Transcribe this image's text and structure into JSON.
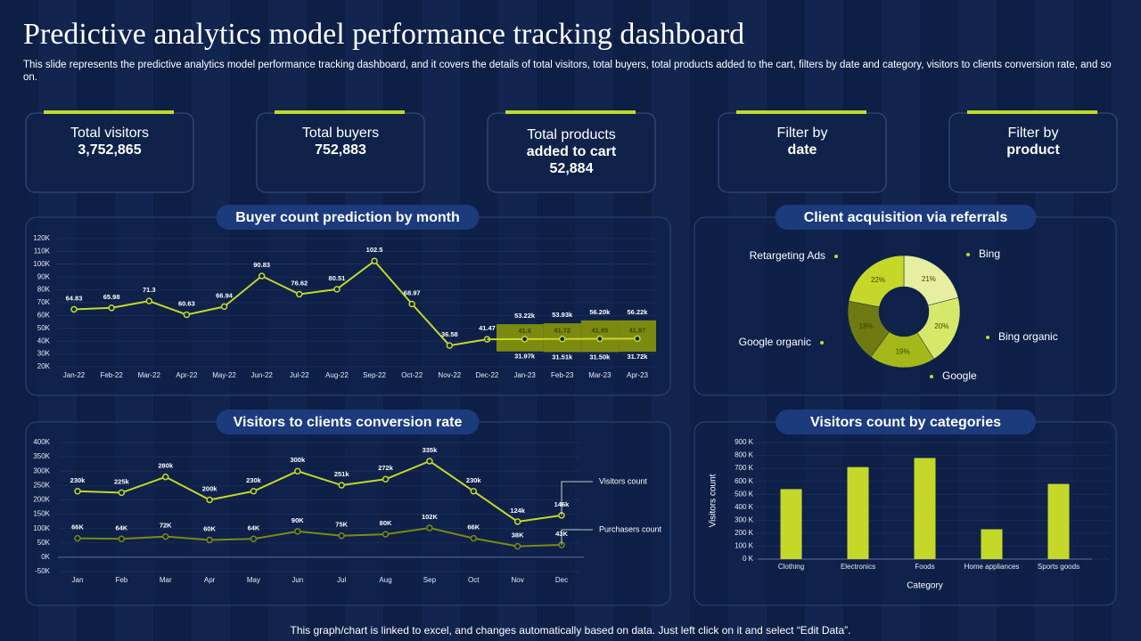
{
  "header": {
    "title": "Predictive analytics model performance tracking dashboard",
    "subtitle": "This slide represents the predictive analytics model performance tracking dashboard, and it covers the details of total visitors, total buyers, total products added to the cart, filters by date and category, visitors to clients conversion rate, and so on."
  },
  "kpis": [
    {
      "label": [
        "Total visitors"
      ],
      "value": [
        "3,752,865"
      ]
    },
    {
      "label": [
        "Total buyers"
      ],
      "value": [
        "752,883"
      ]
    },
    {
      "label": [
        "Total products"
      ],
      "value": [
        "added to cart",
        "52,884"
      ]
    },
    {
      "label": [
        "Filter by"
      ],
      "value": [
        "date"
      ]
    },
    {
      "label": [
        "Filter by"
      ],
      "value": [
        "product"
      ]
    }
  ],
  "chart_data": [
    {
      "type": "line",
      "title": "Buyer count prediction by month",
      "categories": [
        "Jan-22",
        "Feb-22",
        "Mar-22",
        "Apr-22",
        "May-22",
        "Jun-22",
        "Jul-22",
        "Aug-22",
        "Sep-22",
        "Oct-22",
        "Nov-22",
        "Dec-22",
        "Jan-23",
        "Feb-23",
        "Mar-23",
        "Apr-23"
      ],
      "ylim": [
        20,
        120
      ],
      "yticks": [
        {
          "value": 20,
          "label": "20K"
        },
        {
          "value": 30,
          "label": "30K"
        },
        {
          "value": 40,
          "label": "40K"
        },
        {
          "value": 50,
          "label": "50K"
        },
        {
          "value": 60,
          "label": "60K"
        },
        {
          "value": 70,
          "label": "70K"
        },
        {
          "value": 80,
          "label": "80K"
        },
        {
          "value": 90,
          "label": "90K"
        },
        {
          "value": 100,
          "label": "100K"
        },
        {
          "value": 110,
          "label": "110K"
        },
        {
          "value": 120,
          "label": "120K"
        }
      ],
      "series": [
        {
          "color": "#c5d82a",
          "values": [
            64.83,
            65.98,
            71.3,
            60.63,
            66.94,
            90.83,
            76.62,
            80.51,
            102.5,
            68.97,
            36.58,
            41.47,
            null,
            null,
            null,
            null
          ]
        },
        {
          "color": "#c5d82a",
          "label_color": "#3a4400",
          "band_color": "#7d8a10",
          "values": [
            null,
            null,
            null,
            null,
            null,
            null,
            null,
            null,
            null,
            null,
            null,
            null,
            41.6,
            41.72,
            41.85,
            41.97
          ],
          "upper": {
            "values": [
              null,
              null,
              null,
              null,
              null,
              null,
              null,
              null,
              null,
              null,
              null,
              null,
              53.22,
              53.93,
              56.2,
              56.22
            ],
            "value_labels": [
              null,
              null,
              null,
              null,
              null,
              null,
              null,
              null,
              null,
              null,
              null,
              null,
              "53.22k",
              "53.93k",
              "56.20k",
              "56.22k"
            ]
          },
          "lower": {
            "values": [
              null,
              null,
              null,
              null,
              null,
              null,
              null,
              null,
              null,
              null,
              null,
              null,
              31.97,
              31.51,
              31.5,
              31.72
            ],
            "value_labels": [
              null,
              null,
              null,
              null,
              null,
              null,
              null,
              null,
              null,
              null,
              null,
              null,
              "31.97k",
              "31.51k",
              "31.50k",
              "31.72k"
            ]
          }
        }
      ]
    },
    {
      "type": "donut",
      "title": "Client acquisition via referrals",
      "categories": [
        "Bing",
        "Bing organic",
        "Google",
        "Google organic",
        "Retargeting Ads"
      ],
      "values": [
        21,
        20,
        19,
        18,
        22
      ],
      "value_labels": [
        "21%",
        "20%",
        "19%",
        "18%",
        "22%"
      ],
      "colors": [
        "#e6efa0",
        "#d6e86a",
        "#a4b81a",
        "#6e7a12",
        "#c5d82a"
      ]
    },
    {
      "type": "line",
      "title": "Visitors to clients conversion rate",
      "legend": "line-end",
      "categories": [
        "Jan",
        "Feb",
        "Mar",
        "Apr",
        "May",
        "Jun",
        "Jul",
        "Aug",
        "Sep",
        "Oct",
        "Nov",
        "Dec"
      ],
      "ylim": [
        -50,
        400
      ],
      "yticks": [
        {
          "value": -50,
          "label": "-50K"
        },
        {
          "value": 0,
          "label": "0K"
        },
        {
          "value": 50,
          "label": "50K"
        },
        {
          "value": 100,
          "label": "100K"
        },
        {
          "value": 150,
          "label": "150K"
        },
        {
          "value": 200,
          "label": "200K"
        },
        {
          "value": 250,
          "label": "250K"
        },
        {
          "value": 300,
          "label": "300K"
        },
        {
          "value": 350,
          "label": "350K"
        },
        {
          "value": 400,
          "label": "400K"
        }
      ],
      "series": [
        {
          "name": "Visitors count",
          "color": "#c5d82a",
          "values": [
            230,
            225,
            280,
            200,
            230,
            300,
            251,
            272,
            335,
            230,
            124,
            146
          ],
          "value_labels": [
            "230k",
            "225k",
            "280k",
            "200k",
            "230k",
            "300k",
            "251k",
            "272k",
            "335k",
            "230k",
            "124k",
            "146k"
          ]
        },
        {
          "name": "Purchasers count",
          "color": "#7d8a10",
          "values": [
            66,
            64,
            72,
            60,
            64,
            90,
            75,
            80,
            102,
            66,
            38,
            43
          ],
          "value_labels": [
            "66K",
            "64K",
            "72K",
            "60K",
            "64K",
            "90K",
            "75K",
            "80K",
            "102K",
            "66K",
            "38K",
            "43K"
          ]
        }
      ]
    },
    {
      "type": "bar",
      "title": "Visitors count by categories",
      "xlabel": "Category",
      "ylabel": "Visitors count",
      "categories": [
        "Clothing",
        "Electronics",
        "Foods",
        "Home appliances",
        "Sports goods"
      ],
      "values": [
        540,
        710,
        780,
        230,
        580
      ],
      "color": "#c5d82a",
      "ylim": [
        0,
        900
      ],
      "yticks": [
        {
          "value": 0,
          "label": "0 K"
        },
        {
          "value": 100,
          "label": "100 K"
        },
        {
          "value": 200,
          "label": "200 K"
        },
        {
          "value": 300,
          "label": "300 K"
        },
        {
          "value": 400,
          "label": "400 K"
        },
        {
          "value": 500,
          "label": "500 K"
        },
        {
          "value": 600,
          "label": "600 K"
        },
        {
          "value": 700,
          "label": "700 K"
        },
        {
          "value": 800,
          "label": "800 K"
        },
        {
          "value": 900,
          "label": "900 K"
        }
      ]
    }
  ],
  "footer": "This graph/chart is linked to excel, and changes automatically based on data. Just left click on it and select “Edit Data”."
}
